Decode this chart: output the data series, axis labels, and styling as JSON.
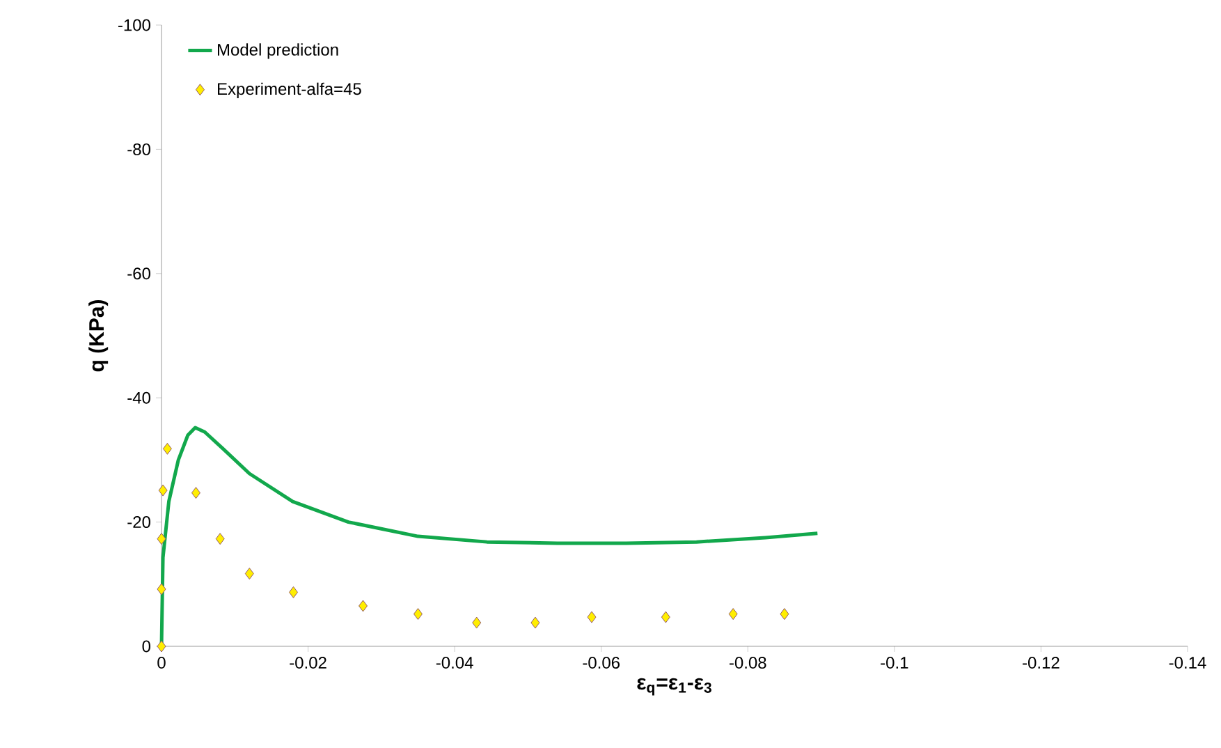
{
  "chart_data": {
    "type": "line",
    "xlabel": "ε$_{q}$=ε$_{1}$-ε$_{3}$",
    "ylabel": "q (KPa)",
    "xlim": [
      0,
      -0.14
    ],
    "ylim": [
      0,
      -100
    ],
    "xticks": [
      0,
      -0.02,
      -0.04,
      -0.06,
      -0.08,
      -0.1,
      -0.12,
      -0.14
    ],
    "yticks": [
      0,
      -20,
      -40,
      -60,
      -80,
      -100
    ],
    "grid": false,
    "legend": "top left",
    "series": [
      {
        "name": "Model prediction",
        "color": "#12a84c",
        "marker": "none",
        "x": [
          0,
          -0.0002,
          -0.001,
          -0.0023,
          -0.0036,
          -0.0046,
          -0.0059,
          -0.0084,
          -0.012,
          -0.0179,
          -0.0255,
          -0.035,
          -0.0444,
          -0.054,
          -0.0634,
          -0.073,
          -0.0824,
          -0.0895
        ],
        "values": [
          0,
          -14.3,
          -23.3,
          -30,
          -34,
          -35.2,
          -34.5,
          -31.8,
          -27.8,
          -23.3,
          -20,
          -17.7,
          -16.8,
          -16.6,
          -16.6,
          -16.8,
          -17.5,
          -18.2
        ]
      },
      {
        "name": "Experiment-alfa=45",
        "type": "scatter",
        "color": "#ffee00",
        "marker": "diamond",
        "x": [
          0,
          0,
          0,
          -0.0002,
          -0.0008,
          -0.0047,
          -0.008,
          -0.012,
          -0.018,
          -0.0275,
          -0.035,
          -0.043,
          -0.051,
          -0.0587,
          -0.0688,
          -0.078,
          -0.085
        ],
        "values": [
          0,
          -9.2,
          -17.3,
          -25.1,
          -31.8,
          -24.7,
          -17.3,
          -11.7,
          -8.7,
          -6.5,
          -5.2,
          -3.8,
          -3.8,
          -4.7,
          -4.7,
          -5.2,
          -5.2
        ]
      }
    ]
  }
}
